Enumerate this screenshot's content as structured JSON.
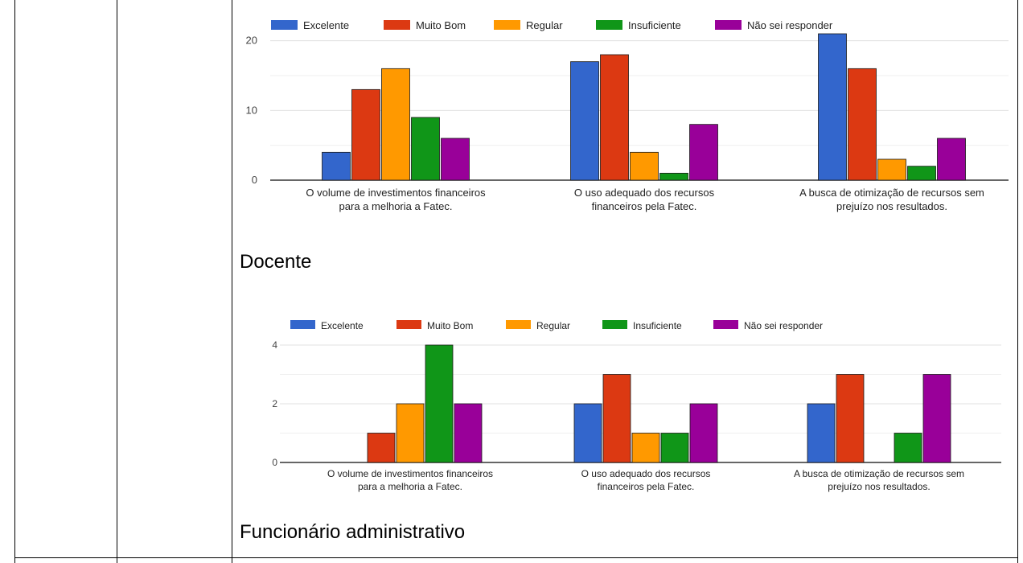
{
  "colors": {
    "Excelente": "#3366cc",
    "Muito Bom": "#dc3912",
    "Regular": "#ff9900",
    "Insuficiente": "#109618",
    "Não sei responder": "#990099"
  },
  "captions": {
    "docente": "Docente",
    "funcionario": "Funcionário administrativo"
  },
  "chart_data": [
    {
      "type": "bar",
      "categories": [
        [
          "O volume de investimentos financeiros",
          "para a melhoria a Fatec."
        ],
        [
          "O uso adequado dos recursos",
          "financeiros pela Fatec."
        ],
        [
          "A busca de otimização de recursos sem",
          "prejuízo nos resultados."
        ]
      ],
      "series": [
        {
          "name": "Excelente",
          "values": [
            4,
            17,
            21
          ]
        },
        {
          "name": "Muito Bom",
          "values": [
            13,
            18,
            16
          ]
        },
        {
          "name": "Regular",
          "values": [
            16,
            4,
            3
          ]
        },
        {
          "name": "Insuficiente",
          "values": [
            9,
            1,
            2
          ]
        },
        {
          "name": "Não sei responder",
          "values": [
            6,
            8,
            6
          ]
        }
      ],
      "yticks": [
        0,
        10,
        20
      ],
      "ylim": [
        0,
        21
      ],
      "grid": true,
      "legend": "top"
    },
    {
      "type": "bar",
      "categories": [
        [
          "O volume de investimentos financeiros",
          "para a melhoria a Fatec."
        ],
        [
          "O uso adequado dos recursos",
          "financeiros pela Fatec."
        ],
        [
          "A busca de otimização de recursos sem",
          "prejuízo nos resultados."
        ]
      ],
      "series": [
        {
          "name": "Excelente",
          "values": [
            0,
            2,
            2
          ]
        },
        {
          "name": "Muito Bom",
          "values": [
            1,
            3,
            3
          ]
        },
        {
          "name": "Regular",
          "values": [
            2,
            1,
            0
          ]
        },
        {
          "name": "Insuficiente",
          "values": [
            4,
            1,
            1
          ]
        },
        {
          "name": "Não sei responder",
          "values": [
            2,
            2,
            3
          ]
        }
      ],
      "yticks": [
        0,
        2,
        4
      ],
      "ylim": [
        0,
        4
      ],
      "grid": true,
      "legend": "top"
    }
  ]
}
